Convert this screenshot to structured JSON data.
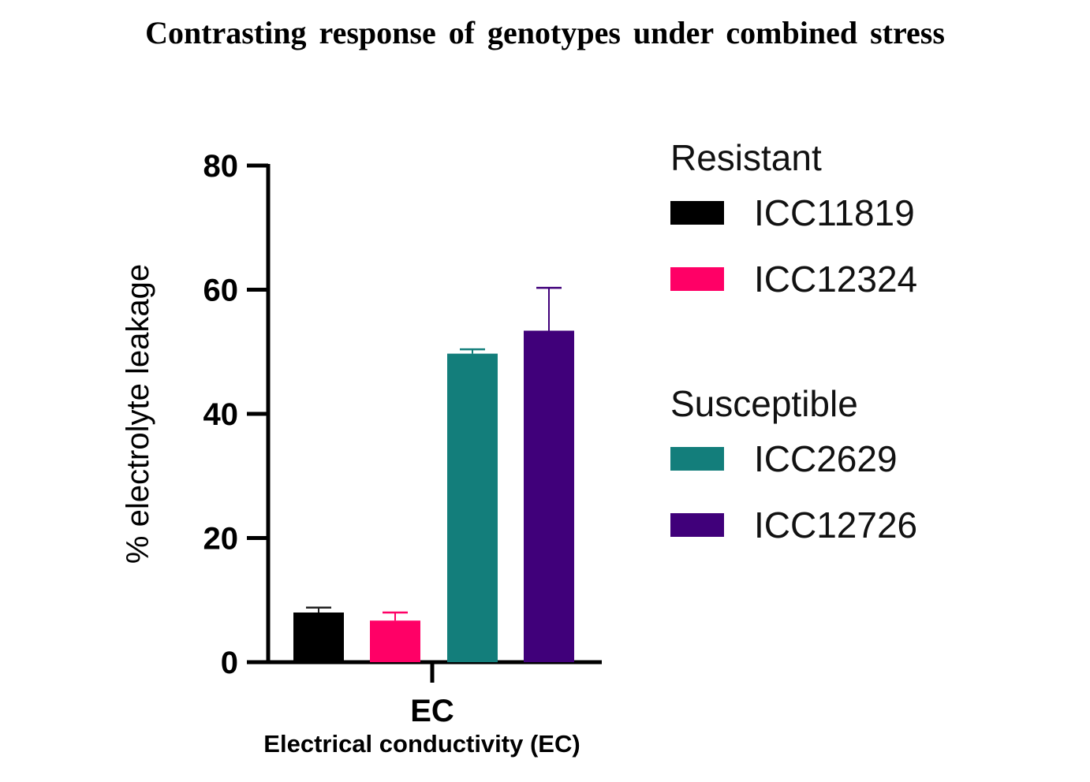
{
  "title": "Contrasting response of genotypes under combined stress",
  "x_axis_title": "Electrical conductivity (EC)",
  "legend": {
    "groups": [
      {
        "title": "Resistant",
        "items": [
          {
            "label": "ICC11819",
            "color": "#000000"
          },
          {
            "label": "ICC12324",
            "color": "#ff0066"
          }
        ]
      },
      {
        "title": "Susceptible",
        "items": [
          {
            "label": "ICC2629",
            "color": "#137e7b"
          },
          {
            "label": "ICC12726",
            "color": "#40007a"
          }
        ]
      }
    ]
  },
  "chart_data": {
    "type": "bar",
    "title": "Contrasting response of genotypes under combined stress",
    "xlabel": "Electrical conductivity (EC)",
    "ylabel": "% electrolyte leakage",
    "categories": [
      "EC"
    ],
    "yticks": [
      0,
      20,
      40,
      60,
      80
    ],
    "ylim": [
      0,
      80
    ],
    "grid": false,
    "legend_position": "right",
    "series": [
      {
        "name": "ICC11819",
        "group": "Resistant",
        "color": "#000000",
        "values": [
          8.0
        ],
        "error": [
          0.8
        ]
      },
      {
        "name": "ICC12324",
        "group": "Resistant",
        "color": "#ff0066",
        "values": [
          6.7
        ],
        "error": [
          1.3
        ]
      },
      {
        "name": "ICC2629",
        "group": "Susceptible",
        "color": "#137e7b",
        "values": [
          49.7
        ],
        "error": [
          0.7
        ]
      },
      {
        "name": "ICC12726",
        "group": "Susceptible",
        "color": "#40007a",
        "values": [
          53.4
        ],
        "error": [
          6.9
        ]
      }
    ]
  }
}
